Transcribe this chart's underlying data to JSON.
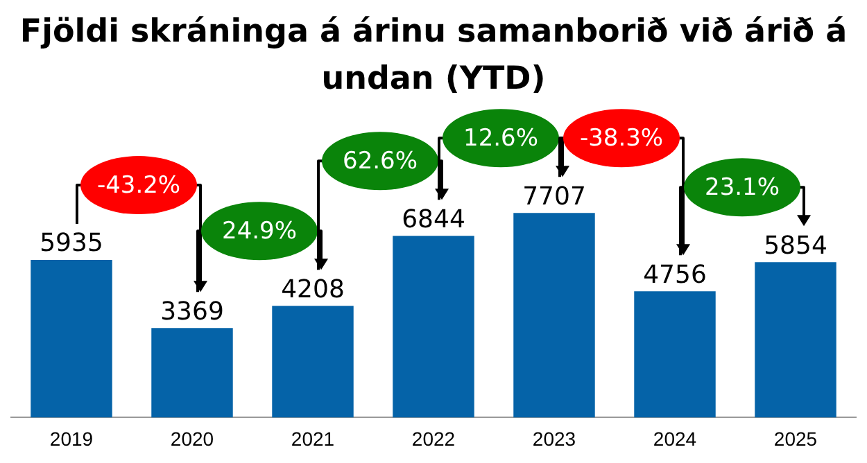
{
  "chart_data": {
    "type": "bar",
    "title": "Fjöldi skráninga á árinu samanborið við árið á undan (YTD)",
    "categories": [
      "2019",
      "2020",
      "2021",
      "2022",
      "2023",
      "2024",
      "2025"
    ],
    "values": [
      5935,
      3369,
      4208,
      6844,
      7707,
      4756,
      5854
    ],
    "color": "#0563a8",
    "data_labels": true,
    "grid": false,
    "legend": false,
    "annotations": [
      "-43.2%",
      "24.9%",
      "62.6%",
      "12.6%",
      "-38.3%",
      "23.1%"
    ]
  }
}
